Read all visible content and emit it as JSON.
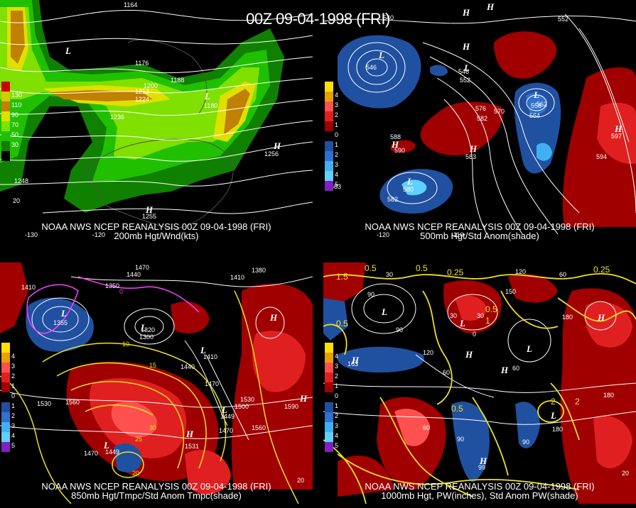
{
  "title": "00Z 09-04-1998 (FRI)",
  "panels": [
    {
      "id": "p200",
      "caption_line1": "NOAA NWS NCEP REANALYSIS 00Z 09-04-1998 (FRI)",
      "caption_line2": "200mb Hgt/Wnd(kts)",
      "legend": [
        {
          "label": "130",
          "color": "#d0d000"
        },
        {
          "label": "110",
          "color": "#c08000"
        },
        {
          "label": "90",
          "color": "#e0e000"
        },
        {
          "label": "70",
          "color": "#80e000"
        },
        {
          "label": "50",
          "color": "#20c000"
        },
        {
          "label": "30",
          "color": "#108000"
        },
        {
          "label": "",
          "color": "#000000"
        }
      ],
      "legend_top_color": "#cc0000",
      "contour_labels": [
        "1164",
        "1176",
        "1188",
        "1200",
        "1212",
        "1224",
        "1236",
        "1180",
        "1248",
        "1256",
        "1255"
      ],
      "lon_labels": [
        "-130",
        "-120",
        "20"
      ]
    },
    {
      "id": "p500",
      "caption_line1": "NOAA NWS NCEP REANALYSIS 00Z 09-04-1998 (FRI)",
      "caption_line2": "500mb Hgt/Std Anom(shade)",
      "legend": [
        {
          "label": "4",
          "color": "#e6a000"
        },
        {
          "label": "3",
          "color": "#ff5050"
        },
        {
          "label": "2",
          "color": "#e02020"
        },
        {
          "label": "1",
          "color": "#a00000"
        },
        {
          "label": "0",
          "color": "#000000"
        },
        {
          "label": "1",
          "color": "#2050a0"
        },
        {
          "label": "2",
          "color": "#3070d0"
        },
        {
          "label": "3",
          "color": "#40b0f0"
        },
        {
          "label": "4",
          "color": "#60d0ff"
        },
        {
          "label": "5",
          "color": "#8020c0"
        }
      ],
      "legend_top_color": "#ffe000",
      "contour_labels": [
        "540",
        "546",
        "552",
        "558",
        "564",
        "570",
        "576",
        "582",
        "588",
        "594",
        "540",
        "552",
        "546",
        "562",
        "580",
        "582",
        "583",
        "590",
        "597"
      ],
      "lon_labels": [
        "-120",
        "-110"
      ]
    },
    {
      "id": "p850",
      "caption_line1": "NOAA NWS NCEP REANALYSIS 00Z 09-04-1998 (FRI)",
      "caption_line2": "850mb Hgt/Tmpc/Std Anom Tmpc(shade)",
      "legend": [
        {
          "label": "4",
          "color": "#e6a000"
        },
        {
          "label": "3",
          "color": "#ff5050"
        },
        {
          "label": "2",
          "color": "#e02020"
        },
        {
          "label": "1",
          "color": "#a00000"
        },
        {
          "label": "0",
          "color": "#000000"
        },
        {
          "label": "1",
          "color": "#2050a0"
        },
        {
          "label": "2",
          "color": "#3070d0"
        },
        {
          "label": "3",
          "color": "#40b0f0"
        },
        {
          "label": "4",
          "color": "#60d0ff"
        },
        {
          "label": "5",
          "color": "#8020c0"
        }
      ],
      "legend_top_color": "#ffe000",
      "contour_labels": [
        "1470",
        "1440",
        "1350",
        "1380",
        "1410",
        "1355",
        "1500",
        "1530",
        "1560",
        "1590",
        "1470",
        "1449",
        "1531",
        "1560",
        "10",
        "15",
        "20",
        "25",
        "30",
        "0",
        "1300",
        "1320"
      ],
      "lon_labels": [
        "20"
      ]
    },
    {
      "id": "p1000",
      "caption_line1": "NOAA NWS NCEP REANALYSIS 00Z 09-04-1998 (FRI)",
      "caption_line2": "1000mb Hgt, PW(inches), Std Anom PW(shade)",
      "legend": [
        {
          "label": "4",
          "color": "#e6a000"
        },
        {
          "label": "3",
          "color": "#ff5050"
        },
        {
          "label": "2",
          "color": "#e02020"
        },
        {
          "label": "1",
          "color": "#a00000"
        },
        {
          "label": "0",
          "color": "#000000"
        },
        {
          "label": "1",
          "color": "#2050a0"
        },
        {
          "label": "2",
          "color": "#3070d0"
        },
        {
          "label": "3",
          "color": "#40b0f0"
        },
        {
          "label": "4",
          "color": "#60d0ff"
        },
        {
          "label": "5",
          "color": "#8020c0"
        }
      ],
      "legend_top_color": "#ffe000",
      "contour_labels": [
        "0.5",
        "0.25",
        "0.5",
        "1.5",
        "60",
        "90",
        "120",
        "150",
        "180",
        "30",
        "0",
        "60",
        "90",
        "120",
        "180",
        "0.5",
        "1",
        "2",
        "1.5",
        "163",
        "99",
        "60"
      ],
      "lon_labels": [
        "20"
      ]
    }
  ],
  "colors": {
    "jet_dark": "#108000",
    "jet_mid": "#20c000",
    "jet_light": "#80e000",
    "jet_yellow": "#e0e000",
    "jet_orange": "#c08000",
    "anom_red1": "#a00000",
    "anom_red2": "#e02020",
    "anom_red3": "#ff5050",
    "anom_blue1": "#2050a0",
    "anom_blue2": "#3070d0",
    "anom_blue3": "#60d0ff",
    "contour_white": "#ffffff",
    "contour_yellow": "#f0e020",
    "contour_magenta": "#ff40ff",
    "land_gray": "#606060"
  }
}
